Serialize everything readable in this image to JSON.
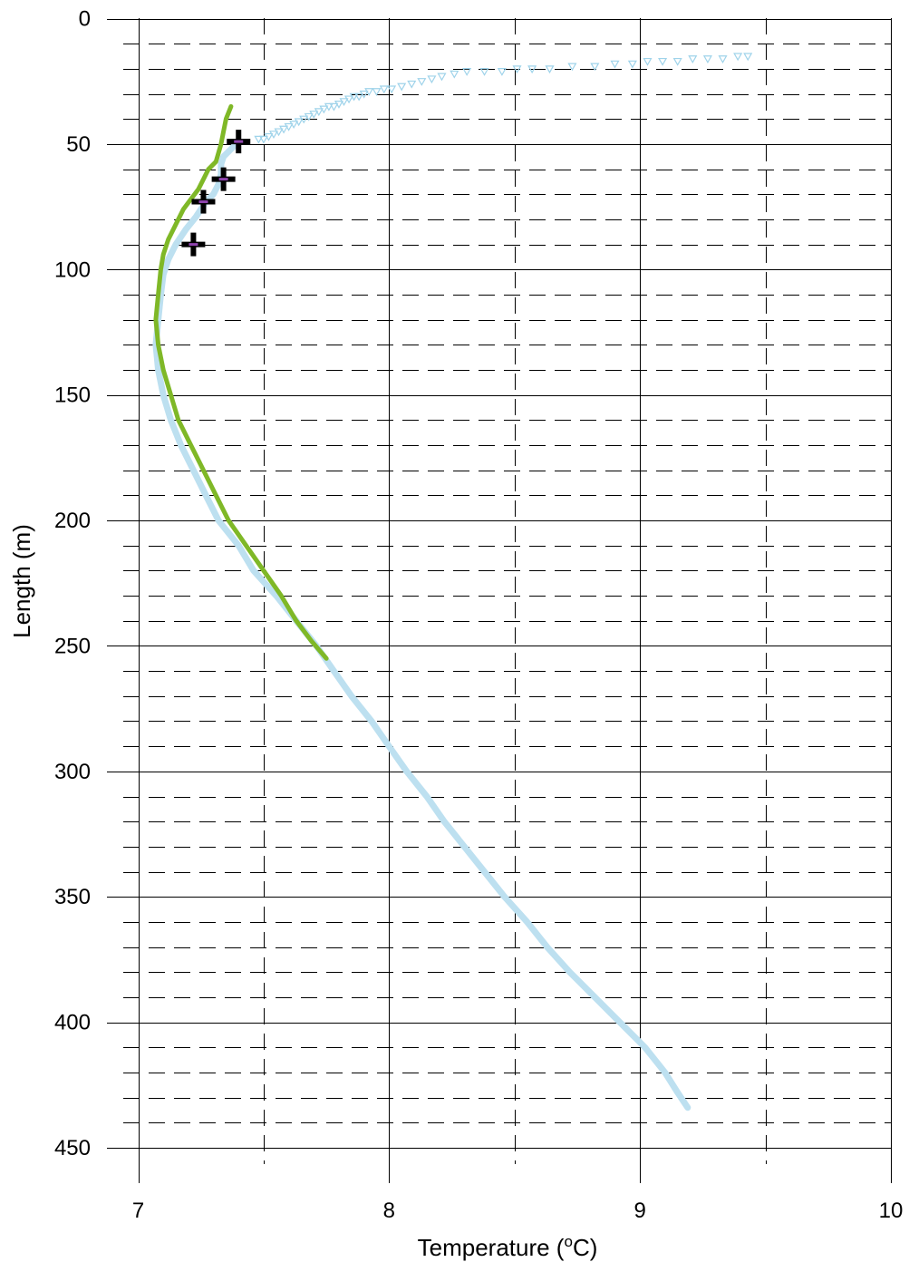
{
  "chart_data": {
    "type": "line",
    "title": "",
    "xlabel": "Temperature (°C)",
    "xlabel_parts": {
      "pre": "Temperature (",
      "sup": "o",
      "post": "C)"
    },
    "ylabel": "Length (m)",
    "xlim": [
      7,
      10
    ],
    "ylim": [
      0,
      450
    ],
    "y_inverted": true,
    "x_ticks": [
      "7",
      "8",
      "9",
      "10"
    ],
    "y_ticks": [
      "0",
      "50",
      "100",
      "150",
      "200",
      "250",
      "300",
      "350",
      "400",
      "450"
    ],
    "grid": {
      "x_major": 1,
      "x_minor": 0.5,
      "y_major": 50,
      "y_minor": 10
    },
    "legend": "none",
    "series": [
      {
        "style": "thick-line",
        "color": "#bde0f0",
        "points": [
          [
            7.4,
            49
          ],
          [
            7.38,
            51
          ],
          [
            7.36,
            53
          ],
          [
            7.34,
            55
          ],
          [
            7.33,
            58
          ],
          [
            7.33,
            62
          ],
          [
            7.32,
            66
          ],
          [
            7.3,
            70
          ],
          [
            7.27,
            73
          ],
          [
            7.23,
            79
          ],
          [
            7.19,
            84
          ],
          [
            7.15,
            90
          ],
          [
            7.12,
            96
          ],
          [
            7.1,
            102
          ],
          [
            7.09,
            110
          ],
          [
            7.08,
            120
          ],
          [
            7.07,
            130
          ],
          [
            7.08,
            140
          ],
          [
            7.1,
            150
          ],
          [
            7.13,
            160
          ],
          [
            7.17,
            170
          ],
          [
            7.22,
            180
          ],
          [
            7.27,
            190
          ],
          [
            7.32,
            200
          ],
          [
            7.4,
            210
          ],
          [
            7.46,
            220
          ],
          [
            7.55,
            230
          ],
          [
            7.63,
            240
          ],
          [
            7.71,
            250
          ],
          [
            7.78,
            260
          ],
          [
            7.85,
            270
          ],
          [
            7.93,
            280
          ],
          [
            8.0,
            290
          ],
          [
            8.07,
            300
          ],
          [
            8.15,
            310
          ],
          [
            8.22,
            320
          ],
          [
            8.3,
            330
          ],
          [
            8.38,
            340
          ],
          [
            8.46,
            350
          ],
          [
            8.55,
            360
          ],
          [
            8.63,
            370
          ],
          [
            8.72,
            380
          ],
          [
            8.82,
            390
          ],
          [
            8.92,
            400
          ],
          [
            9.02,
            410
          ],
          [
            9.1,
            420
          ],
          [
            9.15,
            428
          ],
          [
            9.19,
            434
          ]
        ]
      },
      {
        "style": "triangle-markers",
        "color": "#9fd3ea",
        "points": [
          [
            9.43,
            15
          ],
          [
            9.39,
            15
          ],
          [
            9.33,
            16
          ],
          [
            9.27,
            16
          ],
          [
            9.21,
            16
          ],
          [
            9.15,
            17
          ],
          [
            9.09,
            17
          ],
          [
            9.03,
            17
          ],
          [
            8.97,
            18
          ],
          [
            8.9,
            18
          ],
          [
            8.82,
            19
          ],
          [
            8.73,
            19
          ],
          [
            8.64,
            20
          ],
          [
            8.57,
            20
          ],
          [
            8.51,
            20
          ],
          [
            8.45,
            21
          ],
          [
            8.38,
            21
          ],
          [
            8.31,
            21
          ],
          [
            8.26,
            22
          ],
          [
            8.21,
            23
          ],
          [
            8.17,
            24
          ],
          [
            8.13,
            25
          ],
          [
            8.09,
            26
          ],
          [
            8.05,
            27
          ],
          [
            8.01,
            28
          ],
          [
            7.98,
            28
          ],
          [
            7.95,
            29
          ],
          [
            7.92,
            29
          ],
          [
            7.9,
            30
          ],
          [
            7.88,
            31
          ],
          [
            7.86,
            31
          ],
          [
            7.84,
            32
          ],
          [
            7.82,
            33
          ],
          [
            7.8,
            34
          ],
          [
            7.78,
            35
          ],
          [
            7.76,
            35
          ],
          [
            7.74,
            36
          ],
          [
            7.72,
            37
          ],
          [
            7.7,
            38
          ],
          [
            7.68,
            39
          ],
          [
            7.66,
            40
          ],
          [
            7.64,
            41
          ],
          [
            7.62,
            42
          ],
          [
            7.6,
            43
          ],
          [
            7.58,
            44
          ],
          [
            7.56,
            45
          ],
          [
            7.54,
            46
          ],
          [
            7.52,
            47
          ],
          [
            7.5,
            48
          ],
          [
            7.48,
            48
          ]
        ]
      },
      {
        "style": "line",
        "color": "#7fb827",
        "points": [
          [
            7.37,
            35
          ],
          [
            7.35,
            40
          ],
          [
            7.34,
            45
          ],
          [
            7.33,
            50
          ],
          [
            7.31,
            57
          ],
          [
            7.28,
            60
          ],
          [
            7.26,
            64
          ],
          [
            7.24,
            68
          ],
          [
            7.21,
            72
          ],
          [
            7.18,
            76
          ],
          [
            7.15,
            82
          ],
          [
            7.12,
            88
          ],
          [
            7.1,
            94
          ],
          [
            7.09,
            100
          ],
          [
            7.08,
            110
          ],
          [
            7.07,
            120
          ],
          [
            7.08,
            130
          ],
          [
            7.1,
            140
          ],
          [
            7.13,
            150
          ],
          [
            7.16,
            160
          ],
          [
            7.21,
            170
          ],
          [
            7.26,
            180
          ],
          [
            7.31,
            190
          ],
          [
            7.36,
            200
          ],
          [
            7.43,
            210
          ],
          [
            7.5,
            220
          ],
          [
            7.57,
            230
          ],
          [
            7.63,
            240
          ],
          [
            7.69,
            248
          ],
          [
            7.75,
            255
          ]
        ]
      },
      {
        "style": "cross-markers",
        "color": "#000000",
        "inner_color": "#8e44ad",
        "points": [
          [
            7.4,
            49
          ],
          [
            7.34,
            64
          ],
          [
            7.26,
            73
          ],
          [
            7.22,
            90
          ]
        ]
      }
    ]
  }
}
